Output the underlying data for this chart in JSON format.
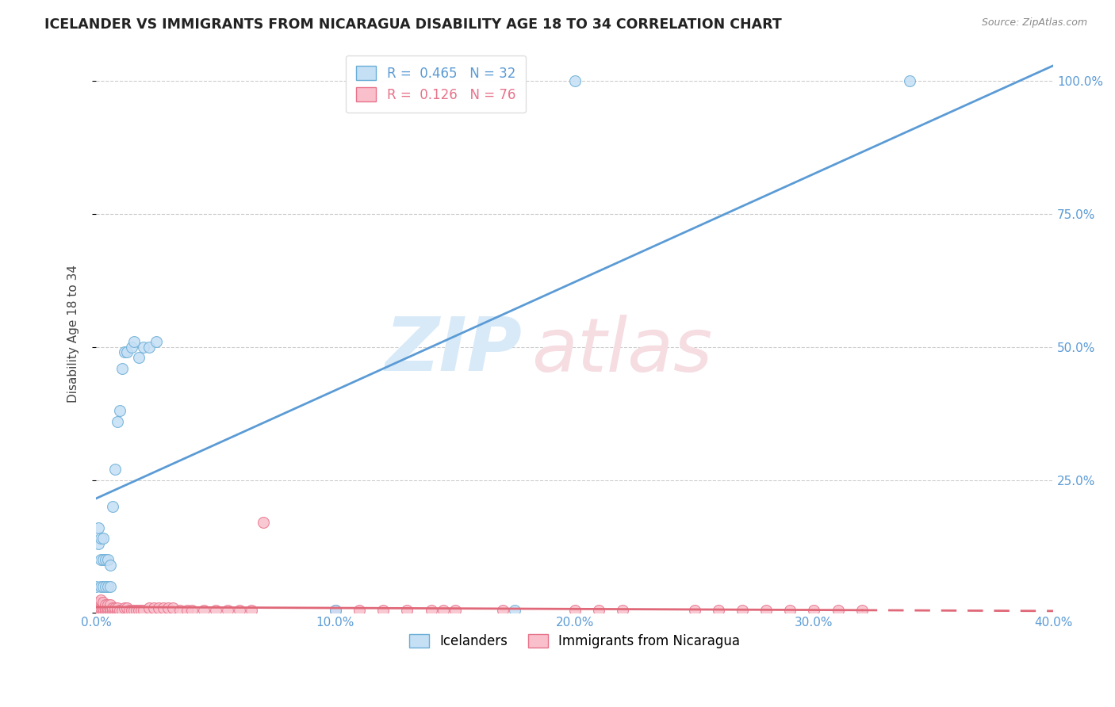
{
  "title": "ICELANDER VS IMMIGRANTS FROM NICARAGUA DISABILITY AGE 18 TO 34 CORRELATION CHART",
  "source": "Source: ZipAtlas.com",
  "ylabel": "Disability Age 18 to 34",
  "legend1_label": "Icelanders",
  "legend2_label": "Immigrants from Nicaragua",
  "r1": "0.465",
  "n1": "32",
  "r2": "0.126",
  "n2": "76",
  "blue_fill": "#c5dff5",
  "blue_edge": "#6aaed6",
  "pink_fill": "#f9c0cc",
  "pink_edge": "#e8728a",
  "line_blue": "#5b9bd5",
  "line_pink": "#e06878",
  "icelander_x": [
    0.0,
    0.001,
    0.001,
    0.002,
    0.002,
    0.002,
    0.003,
    0.003,
    0.003,
    0.004,
    0.004,
    0.005,
    0.005,
    0.006,
    0.006,
    0.007,
    0.008,
    0.009,
    0.01,
    0.011,
    0.012,
    0.013,
    0.015,
    0.016,
    0.018,
    0.02,
    0.022,
    0.025,
    0.1,
    0.175,
    0.2,
    0.34
  ],
  "icelander_y": [
    0.05,
    0.13,
    0.16,
    0.05,
    0.1,
    0.14,
    0.05,
    0.1,
    0.14,
    0.05,
    0.1,
    0.05,
    0.1,
    0.05,
    0.09,
    0.2,
    0.27,
    0.36,
    0.38,
    0.46,
    0.49,
    0.49,
    0.5,
    0.51,
    0.48,
    0.5,
    0.5,
    0.51,
    0.005,
    0.005,
    1.0,
    1.0
  ],
  "nicaragua_x": [
    0.0,
    0.0,
    0.0,
    0.001,
    0.001,
    0.001,
    0.001,
    0.002,
    0.002,
    0.002,
    0.002,
    0.002,
    0.003,
    0.003,
    0.003,
    0.003,
    0.004,
    0.004,
    0.004,
    0.005,
    0.005,
    0.005,
    0.006,
    0.006,
    0.006,
    0.007,
    0.007,
    0.008,
    0.008,
    0.009,
    0.009,
    0.01,
    0.011,
    0.012,
    0.013,
    0.014,
    0.015,
    0.016,
    0.017,
    0.018,
    0.019,
    0.02,
    0.022,
    0.024,
    0.026,
    0.028,
    0.03,
    0.032,
    0.035,
    0.038,
    0.04,
    0.045,
    0.05,
    0.055,
    0.06,
    0.065,
    0.07,
    0.1,
    0.11,
    0.12,
    0.13,
    0.14,
    0.145,
    0.15,
    0.17,
    0.2,
    0.21,
    0.22,
    0.25,
    0.26,
    0.27,
    0.28,
    0.29,
    0.3,
    0.31,
    0.32
  ],
  "nicaragua_y": [
    0.01,
    0.01,
    0.015,
    0.005,
    0.01,
    0.015,
    0.02,
    0.005,
    0.01,
    0.015,
    0.02,
    0.025,
    0.005,
    0.01,
    0.015,
    0.02,
    0.005,
    0.01,
    0.015,
    0.005,
    0.01,
    0.015,
    0.005,
    0.01,
    0.015,
    0.005,
    0.01,
    0.005,
    0.01,
    0.005,
    0.01,
    0.005,
    0.005,
    0.01,
    0.01,
    0.005,
    0.005,
    0.005,
    0.005,
    0.005,
    0.005,
    0.005,
    0.01,
    0.01,
    0.01,
    0.01,
    0.01,
    0.01,
    0.005,
    0.005,
    0.005,
    0.005,
    0.005,
    0.005,
    0.005,
    0.005,
    0.17,
    0.005,
    0.005,
    0.005,
    0.005,
    0.005,
    0.005,
    0.005,
    0.005,
    0.005,
    0.005,
    0.005,
    0.005,
    0.005,
    0.005,
    0.005,
    0.005,
    0.005,
    0.005,
    0.005
  ],
  "xmin": 0.0,
  "xmax": 0.4,
  "ymin": 0.0,
  "ymax": 1.05,
  "yticks": [
    0.0,
    0.25,
    0.5,
    0.75,
    1.0
  ],
  "ytick_labels": [
    "",
    "25.0%",
    "50.0%",
    "75.0%",
    "100.0%"
  ],
  "xticks": [
    0.0,
    0.1,
    0.2,
    0.3,
    0.4
  ],
  "xtick_labels": [
    "0.0%",
    "10.0%",
    "20.0%",
    "30.0%",
    "40.0%"
  ]
}
